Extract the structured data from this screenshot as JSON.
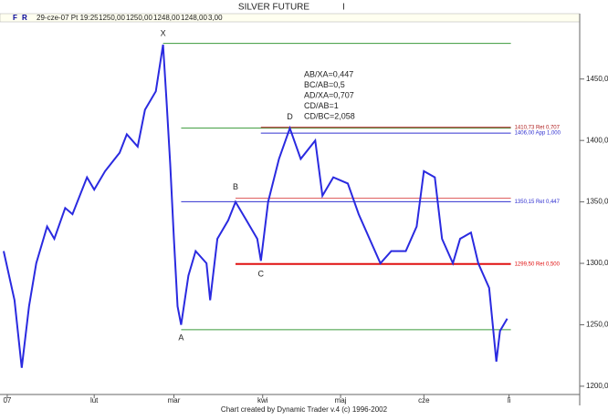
{
  "header": {
    "flags": [
      "F",
      "R"
    ],
    "info": [
      "29-cze-07 Pt 19:25",
      "1250,00",
      "1250,00",
      "1248,00",
      "1248,00",
      "3,00"
    ]
  },
  "chart_data": {
    "type": "line",
    "title": "SILVER FUTURE",
    "subtitle": "I",
    "footer": "Chart created by Dynamic Trader v.4  (c) 1996-2002",
    "x": [
      1,
      4,
      6,
      8,
      10,
      13,
      15,
      18,
      20,
      24,
      26,
      29,
      33,
      35,
      38,
      40,
      43,
      45,
      46,
      47,
      48,
      49,
      50,
      52,
      54,
      57,
      58,
      60,
      63,
      65,
      68,
      71,
      72,
      74,
      77,
      80,
      83,
      87,
      89,
      92,
      96,
      99,
      102,
      105,
      108,
      112,
      115,
      117,
      120,
      122,
      125,
      127,
      130,
      132,
      135,
      137,
      138,
      140
    ],
    "series": [
      {
        "name": "SILVER FUTURE",
        "color": "#2a2ae0",
        "values": [
          1310,
          1270,
          1215,
          1265,
          1300,
          1330,
          1320,
          1345,
          1340,
          1370,
          1360,
          1375,
          1390,
          1405,
          1395,
          1425,
          1440,
          1478,
          1430,
          1380,
          1320,
          1265,
          1250,
          1290,
          1310,
          1300,
          1270,
          1320,
          1335,
          1350,
          1335,
          1320,
          1302,
          1350,
          1385,
          1410,
          1385,
          1400,
          1355,
          1370,
          1365,
          1340,
          1320,
          1300,
          1310,
          1310,
          1330,
          1375,
          1370,
          1320,
          1300,
          1320,
          1325,
          1300,
          1280,
          1220,
          1245,
          1255
        ]
      }
    ],
    "xlim": [
      0,
      160
    ],
    "ylim": [
      1194,
      1498
    ],
    "xticks": [
      {
        "value": 2,
        "label": "07"
      },
      {
        "value": 26,
        "label": "lut"
      },
      {
        "value": 48,
        "label": "mar"
      },
      {
        "value": 72.5,
        "label": "kwi"
      },
      {
        "value": 94,
        "label": "maj"
      },
      {
        "value": 117,
        "label": "cze"
      },
      {
        "value": 140.5,
        "label": "li"
      }
    ],
    "yticks": [
      {
        "value": 1200,
        "label": "1200,00"
      },
      {
        "value": 1250,
        "label": "1250,00"
      },
      {
        "value": 1300,
        "label": "1300,00"
      },
      {
        "value": 1350,
        "label": "1350,00"
      },
      {
        "value": 1400,
        "label": "1400,00"
      },
      {
        "value": 1450,
        "label": "1450,00"
      }
    ],
    "levels": [
      {
        "value": 1479,
        "color": "#3a9a3a",
        "from": 45,
        "to": 141
      },
      {
        "value": 1410,
        "color": "#3a9a3a",
        "from": 50,
        "to": 141
      },
      {
        "value": 1410.73,
        "color": "#b02020",
        "from": 72,
        "to": 141,
        "label": "1410,73 Ret 0,707"
      },
      {
        "value": 1406,
        "color": "#3030d0",
        "from": 72,
        "to": 141,
        "label": "1406,00 App 1,000"
      },
      {
        "value": 1353,
        "color": "#e06060",
        "from": 65,
        "to": 141
      },
      {
        "value": 1350.15,
        "color": "#3030d0",
        "from": 50,
        "to": 141,
        "label": "1350,15 Ret 0,447"
      },
      {
        "value": 1299.5,
        "color": "#e01010",
        "from": 65,
        "to": 141,
        "label": "1299,50 Ret 0,500"
      },
      {
        "value": 1246,
        "color": "#3a9a3a",
        "from": 50,
        "to": 141
      }
    ],
    "points": [
      {
        "label": "X",
        "x": 45,
        "value": 1478
      },
      {
        "label": "A",
        "x": 50,
        "value": 1248
      },
      {
        "label": "B",
        "x": 65,
        "value": 1353
      },
      {
        "label": "C",
        "x": 72,
        "value": 1300
      },
      {
        "label": "D",
        "x": 80,
        "value": 1410
      }
    ],
    "ratios": [
      "AB/XA=0,447",
      "BC/AB=0,5",
      "AD/XA=0,707",
      "CD/AB=1",
      "CD/BC=2,058"
    ]
  }
}
